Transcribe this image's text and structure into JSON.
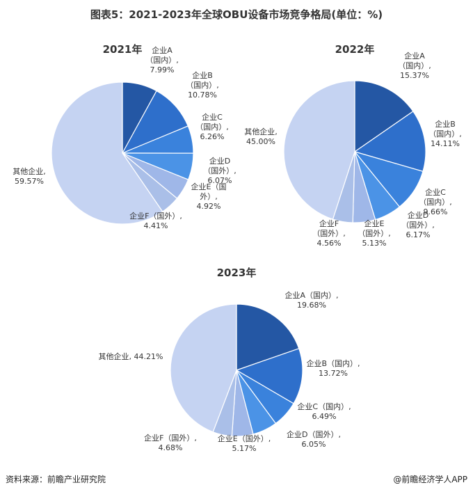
{
  "title": "图表5：2021-2023年全球OBU设备市场竞争格局(单位：%)",
  "footer": {
    "source": "资料来源：前瞻产业研究院",
    "brand": "@前瞻经济学人APP"
  },
  "colors": [
    "#2457a4",
    "#2e6fcb",
    "#3a82dc",
    "#4b93e6",
    "#9fb7e8",
    "#aabfe8",
    "#c5d3f2"
  ],
  "chart_data": [
    {
      "type": "pie",
      "title": "2021年",
      "slices": [
        {
          "name": "企业A（国内）",
          "value": 7.99,
          "label_lines": [
            "企业A",
            "（国内）,",
            "7.99%"
          ]
        },
        {
          "name": "企业B（国内）",
          "value": 10.78,
          "label_lines": [
            "企业B",
            "（国内）,",
            "10.78%"
          ]
        },
        {
          "name": "企业C（国内）",
          "value": 6.26,
          "label_lines": [
            "企业C",
            "（国内）,",
            "6.26%"
          ]
        },
        {
          "name": "企业D（国外）",
          "value": 6.07,
          "label_lines": [
            "企业D",
            "（国外）,",
            "6.07%"
          ]
        },
        {
          "name": "企业E（国外）",
          "value": 4.92,
          "label_lines": [
            "企业E（国",
            "外）,",
            "4.92%"
          ]
        },
        {
          "name": "企业F（国外）",
          "value": 4.41,
          "label_lines": [
            "企业F（国外）,",
            "4.41%"
          ]
        },
        {
          "name": "其他企业",
          "value": 59.57,
          "label_lines": [
            "其他企业,",
            "59.57%"
          ]
        }
      ]
    },
    {
      "type": "pie",
      "title": "2022年",
      "slices": [
        {
          "name": "企业A（国内）",
          "value": 15.37,
          "label_lines": [
            "企业A",
            "（国内）,",
            "15.37%"
          ]
        },
        {
          "name": "企业B（国内）",
          "value": 14.11,
          "label_lines": [
            "企业B",
            "（国内）,",
            "14.11%"
          ]
        },
        {
          "name": "企业C（国内）",
          "value": 9.66,
          "label_lines": [
            "企业C",
            "（国内）,",
            "9.66%"
          ]
        },
        {
          "name": "企业D（国外）",
          "value": 6.17,
          "label_lines": [
            "企业D",
            "（国外）,",
            "6.17%"
          ]
        },
        {
          "name": "企业E（国外）",
          "value": 5.13,
          "label_lines": [
            "企业E",
            "（国外）,",
            "5.13%"
          ]
        },
        {
          "name": "企业F（国外）",
          "value": 4.56,
          "label_lines": [
            "企业F",
            "（国外）,",
            "4.56%"
          ]
        },
        {
          "name": "其他企业",
          "value": 45.0,
          "label_lines": [
            "其他企业,",
            "45.00%"
          ]
        }
      ]
    },
    {
      "type": "pie",
      "title": "2023年",
      "slices": [
        {
          "name": "企业A（国内）",
          "value": 19.68,
          "label_lines": [
            "企业A（国内）,",
            "19.68%"
          ]
        },
        {
          "name": "企业B（国内）",
          "value": 13.72,
          "label_lines": [
            "企业B（国内）,",
            "13.72%"
          ]
        },
        {
          "name": "企业C（国内）",
          "value": 6.49,
          "label_lines": [
            "企业C（国内）,",
            "6.49%"
          ]
        },
        {
          "name": "企业D（国外）",
          "value": 6.05,
          "label_lines": [
            "企业D（国外）,",
            "6.05%"
          ]
        },
        {
          "name": "企业E（国外）",
          "value": 5.17,
          "label_lines": [
            "企业E（国外）,",
            "5.17%"
          ]
        },
        {
          "name": "企业F（国外）",
          "value": 4.68,
          "label_lines": [
            "企业F（国外）,",
            "4.68%"
          ]
        },
        {
          "name": "其他企业",
          "value": 44.21,
          "label_lines": [
            "其他企业, 44.21%"
          ]
        }
      ]
    }
  ]
}
